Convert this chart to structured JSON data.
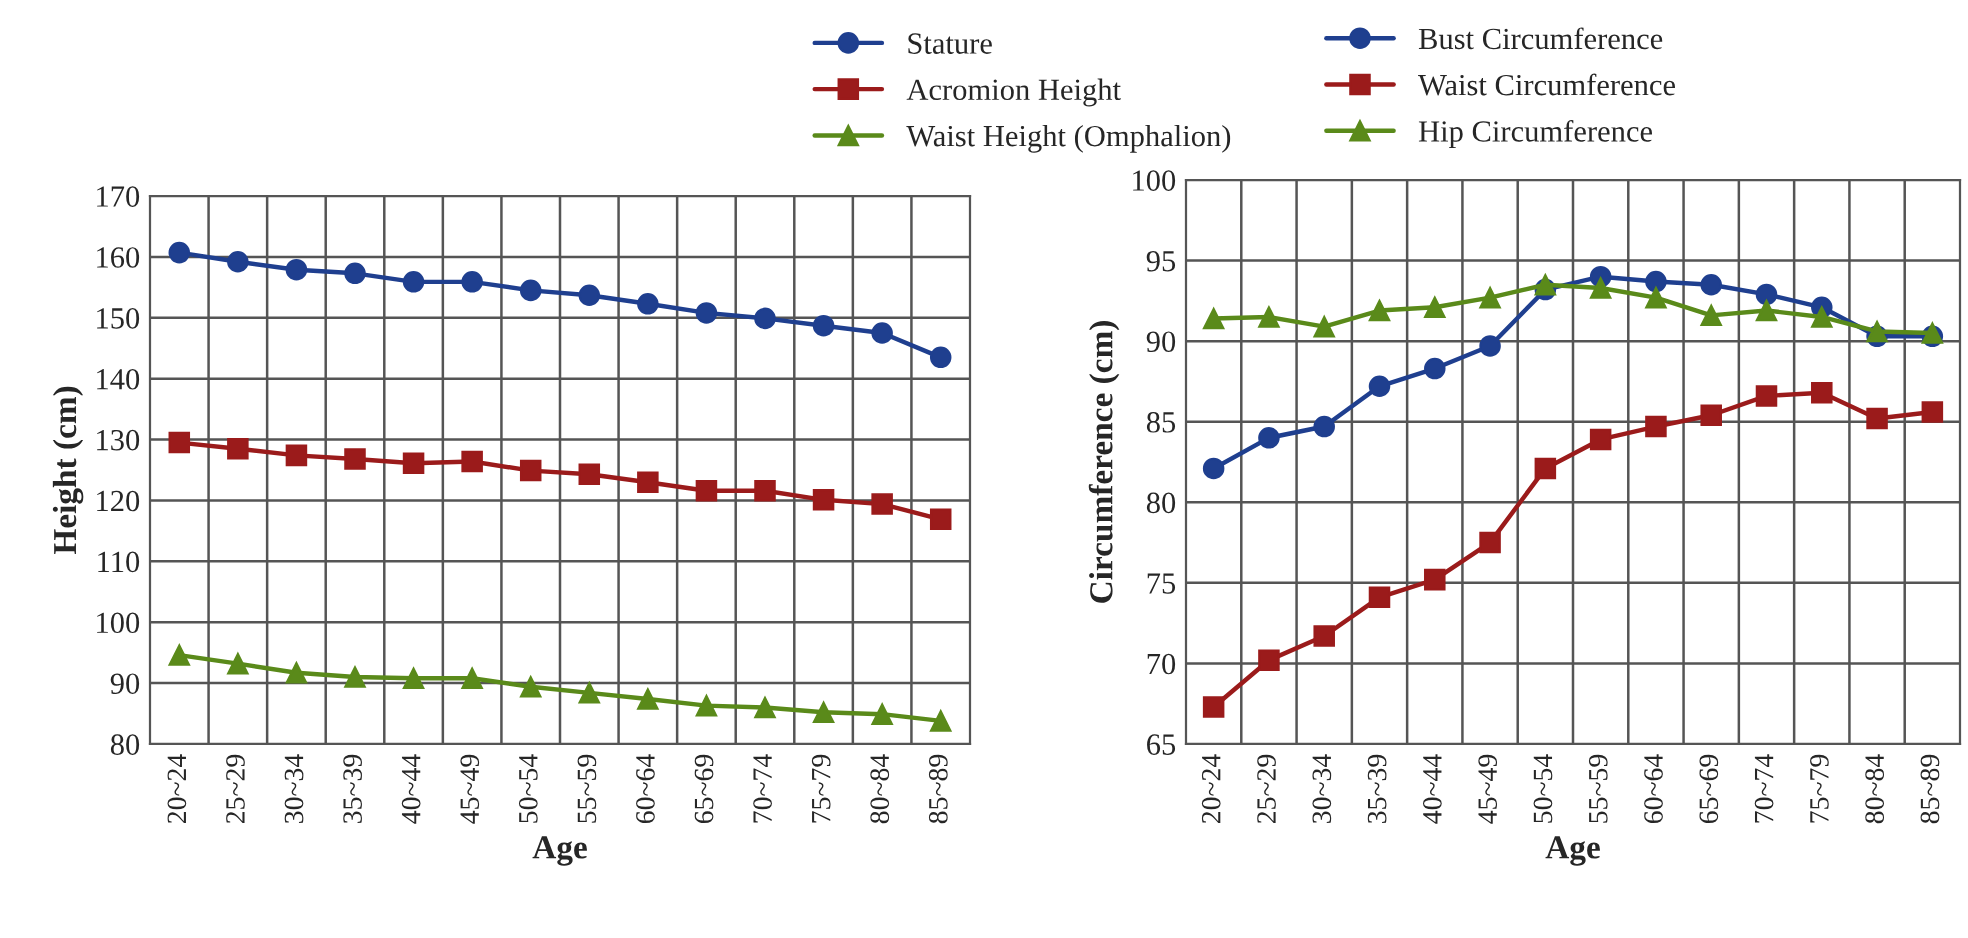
{
  "chart_data": [
    {
      "type": "line",
      "xlabel": "Age",
      "ylabel": "Height (cm)",
      "categories": [
        "20~24",
        "25~29",
        "30~34",
        "35~39",
        "40~44",
        "45~49",
        "50~54",
        "55~59",
        "60~64",
        "65~69",
        "70~74",
        "75~79",
        "80~84",
        "85~89"
      ],
      "series": [
        {
          "name": "Stature",
          "color": "#1f3f8f",
          "marker": "circle",
          "values": [
            160.7,
            159.2,
            157.9,
            157.3,
            155.9,
            155.9,
            154.5,
            153.7,
            152.3,
            150.8,
            149.9,
            148.7,
            147.5,
            143.5
          ]
        },
        {
          "name": "Acromion Height",
          "color": "#9b1b1b",
          "marker": "square",
          "values": [
            129.5,
            128.5,
            127.4,
            126.8,
            126.1,
            126.4,
            124.9,
            124.3,
            123.0,
            121.6,
            121.6,
            120.1,
            119.4,
            116.9
          ]
        },
        {
          "name": "Waist Height (Omphalion)",
          "color": "#5a8a1a",
          "marker": "triangle",
          "values": [
            94.6,
            93.2,
            91.7,
            91.0,
            90.8,
            90.8,
            89.4,
            88.4,
            87.4,
            86.3,
            86.0,
            85.2,
            84.9,
            83.8
          ]
        }
      ],
      "ylim": [
        80,
        170
      ],
      "yticks": [
        80,
        90,
        100,
        110,
        120,
        130,
        140,
        150,
        160,
        170
      ],
      "grid": true,
      "legend": "top"
    },
    {
      "type": "line",
      "xlabel": "Age",
      "ylabel": "Circumference (cm)",
      "categories": [
        "20~24",
        "25~29",
        "30~34",
        "35~39",
        "40~44",
        "45~49",
        "50~54",
        "55~59",
        "60~64",
        "65~69",
        "70~74",
        "75~79",
        "80~84",
        "85~89"
      ],
      "series": [
        {
          "name": "Bust Circumference",
          "color": "#1f3f8f",
          "marker": "circle",
          "values": [
            82.1,
            84.0,
            84.7,
            87.2,
            88.3,
            89.7,
            93.2,
            94.0,
            93.7,
            93.5,
            92.9,
            92.1,
            90.3,
            90.3
          ]
        },
        {
          "name": "Waist Circumference",
          "color": "#9b1b1b",
          "marker": "square",
          "values": [
            67.3,
            70.2,
            71.7,
            74.1,
            75.2,
            77.5,
            82.1,
            83.9,
            84.7,
            85.4,
            86.6,
            86.8,
            85.2,
            85.6
          ]
        },
        {
          "name": "Hip Circumference",
          "color": "#5a8a1a",
          "marker": "triangle",
          "values": [
            91.4,
            91.5,
            90.9,
            91.9,
            92.1,
            92.7,
            93.5,
            93.3,
            92.7,
            91.6,
            91.9,
            91.5,
            90.6,
            90.5
          ]
        }
      ],
      "ylim": [
        65,
        100
      ],
      "yticks": [
        65,
        70,
        75,
        80,
        85,
        90,
        95,
        100
      ],
      "grid": true,
      "legend": "top"
    }
  ]
}
